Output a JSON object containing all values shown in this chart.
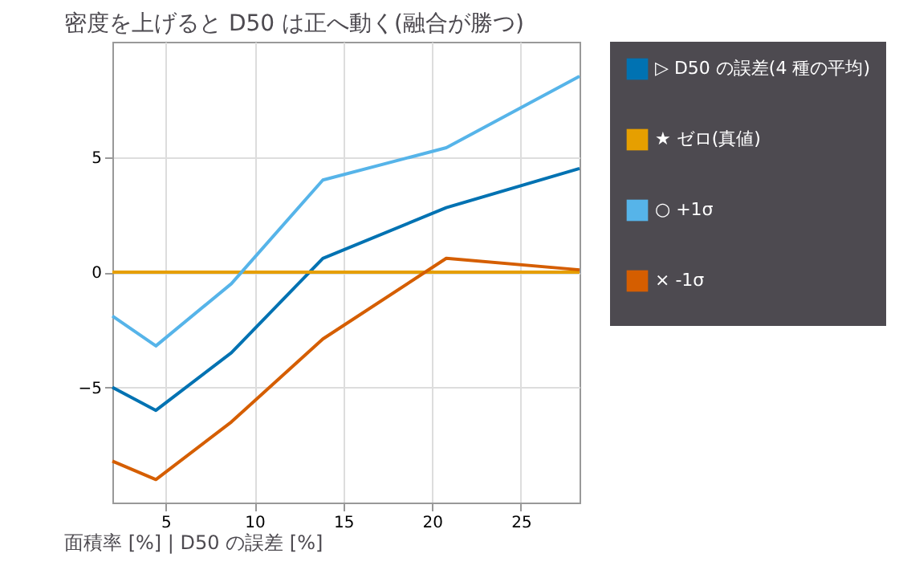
{
  "chart_data": {
    "type": "line",
    "title": "密度を上げると D50 は正へ動く(融合が勝つ)",
    "annotations": [
      "面積率 [%]   |   D50 の誤差 [%]"
    ],
    "x": [
      2,
      4.45,
      8.7,
      13.85,
      20.8,
      28.3
    ],
    "series": [
      {
        "name": "▷ D50 の誤差(4 種の平均)",
        "color": "#0072b2",
        "values": [
          -5.0,
          -6.0,
          -3.5,
          0.6,
          2.8,
          4.5
        ]
      },
      {
        "name": "★ ゼロ(真値)",
        "color": "#e69f00",
        "values": [
          0,
          0,
          0,
          0,
          0,
          0
        ]
      },
      {
        "name": "○ +1σ",
        "color": "#56b4e9",
        "values": [
          -1.9,
          -3.2,
          -0.5,
          4.0,
          5.4,
          8.5
        ]
      },
      {
        "name": "× -1σ",
        "color": "#d55e00",
        "values": [
          -8.2,
          -9.0,
          -6.5,
          -2.9,
          0.6,
          0.1
        ]
      }
    ],
    "xlim": [
      2,
      28.3
    ],
    "xticks": [
      5,
      10,
      15,
      20,
      25
    ],
    "ylim": [
      -10,
      10
    ],
    "yticks": [
      -5,
      0,
      5
    ],
    "grid": true,
    "legend": "top right",
    "marker": "none",
    "line_style": "solid"
  }
}
